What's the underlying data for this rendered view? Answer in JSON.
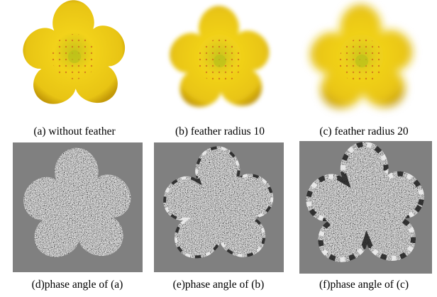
{
  "panels": [
    {
      "caption": "(a) without feather"
    },
    {
      "caption": "(b) feather radius 10"
    },
    {
      "caption": "(c) feather radius 20"
    },
    {
      "caption": "(d)phase angle of (a)"
    },
    {
      "caption": "(e)phase angle of (b)"
    },
    {
      "caption": "(f)phase angle of (c)"
    }
  ]
}
